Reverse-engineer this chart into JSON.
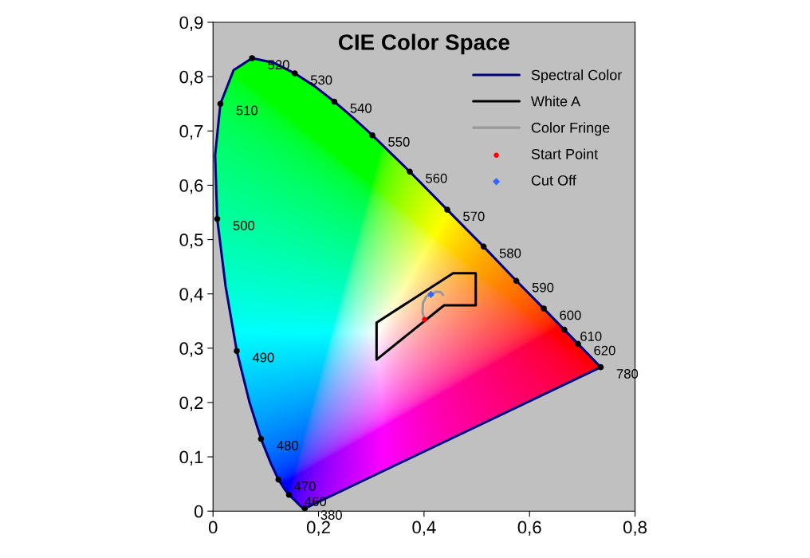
{
  "chart_data": {
    "type": "scatter",
    "title": "CIE Color Space",
    "xlim": [
      0,
      0.8
    ],
    "ylim": [
      0,
      0.9
    ],
    "xticks": [
      {
        "value": 0,
        "label": "0"
      },
      {
        "value": 0.2,
        "label": "0,2"
      },
      {
        "value": 0.4,
        "label": "0,4"
      },
      {
        "value": 0.6,
        "label": "0,6"
      },
      {
        "value": 0.8,
        "label": "0,8"
      }
    ],
    "yticks": [
      {
        "value": 0,
        "label": "0"
      },
      {
        "value": 0.1,
        "label": "0,1"
      },
      {
        "value": 0.2,
        "label": "0,2"
      },
      {
        "value": 0.3,
        "label": "0,3"
      },
      {
        "value": 0.4,
        "label": "0,4"
      },
      {
        "value": 0.5,
        "label": "0,5"
      },
      {
        "value": 0.6,
        "label": "0,6"
      },
      {
        "value": 0.7,
        "label": "0,7"
      },
      {
        "value": 0.8,
        "label": "0,8"
      },
      {
        "value": 0.9,
        "label": "0,9"
      }
    ],
    "grid": false,
    "legend": "top right",
    "series": [
      {
        "name": "Spectral Color",
        "type": "line",
        "color": "#000080",
        "marker": "none",
        "x": [
          0.174,
          0.173,
          0.171,
          0.164,
          0.157,
          0.144,
          0.136,
          0.124,
          0.11,
          0.091,
          0.069,
          0.045,
          0.024,
          0.008,
          0.004,
          0.014,
          0.039,
          0.074,
          0.114,
          0.155,
          0.193,
          0.23,
          0.266,
          0.302,
          0.337,
          0.373,
          0.444,
          0.513,
          0.575,
          0.627,
          0.666,
          0.692,
          0.719,
          0.73,
          0.735,
          0.174
        ],
        "values": [
          0.005,
          0.005,
          0.005,
          0.011,
          0.018,
          0.03,
          0.04,
          0.058,
          0.087,
          0.133,
          0.201,
          0.295,
          0.413,
          0.538,
          0.655,
          0.75,
          0.812,
          0.834,
          0.826,
          0.806,
          0.782,
          0.754,
          0.724,
          0.692,
          0.659,
          0.625,
          0.555,
          0.487,
          0.424,
          0.373,
          0.334,
          0.308,
          0.281,
          0.27,
          0.265,
          0.005
        ]
      },
      {
        "color": "#000000",
        "marker": "circle",
        "x": [
          0.174,
          0.144,
          0.124,
          0.091,
          0.045,
          0.008,
          0.014,
          0.074,
          0.155,
          0.23,
          0.302,
          0.373,
          0.444,
          0.513,
          0.575,
          0.627,
          0.666,
          0.692,
          0.735
        ],
        "values": [
          0.005,
          0.03,
          0.058,
          0.133,
          0.295,
          0.538,
          0.75,
          0.834,
          0.806,
          0.754,
          0.692,
          0.625,
          0.555,
          0.487,
          0.424,
          0.373,
          0.334,
          0.308,
          0.265
        ]
      },
      {
        "name": "White A",
        "type": "line",
        "color": "#000000",
        "marker": "none",
        "x": [
          0.31,
          0.31,
          0.438,
          0.498,
          0.498,
          0.455,
          0.31
        ],
        "values": [
          0.347,
          0.279,
          0.379,
          0.379,
          0.438,
          0.438,
          0.347
        ]
      },
      {
        "name": "Color Fringe",
        "type": "line",
        "color": "#999999",
        "marker": "none",
        "x": [
          0.401,
          0.397,
          0.398,
          0.404,
          0.413,
          0.423,
          0.432,
          0.436
        ],
        "values": [
          0.353,
          0.366,
          0.383,
          0.395,
          0.399,
          0.404,
          0.403,
          0.398
        ]
      },
      {
        "name": "Start Point",
        "type": "scatter",
        "color": "#ff0000",
        "x": [
          0.401
        ],
        "values": [
          0.353
        ]
      },
      {
        "name": "Cut Off",
        "color": "#3366ff",
        "marker": "diamond",
        "x": [
          0.413
        ],
        "values": [
          0.399
        ]
      }
    ],
    "annotations": [
      {
        "text": "380",
        "x": 0.174,
        "y": 0.005
      },
      {
        "text": "460",
        "x": 0.144,
        "y": 0.03
      },
      {
        "text": "470",
        "x": 0.124,
        "y": 0.058
      },
      {
        "text": "480",
        "x": 0.091,
        "y": 0.133
      },
      {
        "text": "490",
        "x": 0.045,
        "y": 0.295
      },
      {
        "text": "500",
        "x": 0.008,
        "y": 0.538
      },
      {
        "text": "510",
        "x": 0.014,
        "y": 0.75
      },
      {
        "text": "520",
        "x": 0.074,
        "y": 0.834
      },
      {
        "text": "530",
        "x": 0.155,
        "y": 0.806
      },
      {
        "text": "540",
        "x": 0.23,
        "y": 0.754
      },
      {
        "text": "550",
        "x": 0.302,
        "y": 0.692
      },
      {
        "text": "560",
        "x": 0.373,
        "y": 0.625
      },
      {
        "text": "570",
        "x": 0.444,
        "y": 0.555
      },
      {
        "text": "580",
        "x": 0.513,
        "y": 0.487
      },
      {
        "text": "590",
        "x": 0.575,
        "y": 0.424
      },
      {
        "text": "600",
        "x": 0.627,
        "y": 0.373
      },
      {
        "text": "610",
        "x": 0.666,
        "y": 0.334
      },
      {
        "text": "620",
        "x": 0.692,
        "y": 0.308
      },
      {
        "text": "780",
        "x": 0.735,
        "y": 0.265
      }
    ]
  }
}
